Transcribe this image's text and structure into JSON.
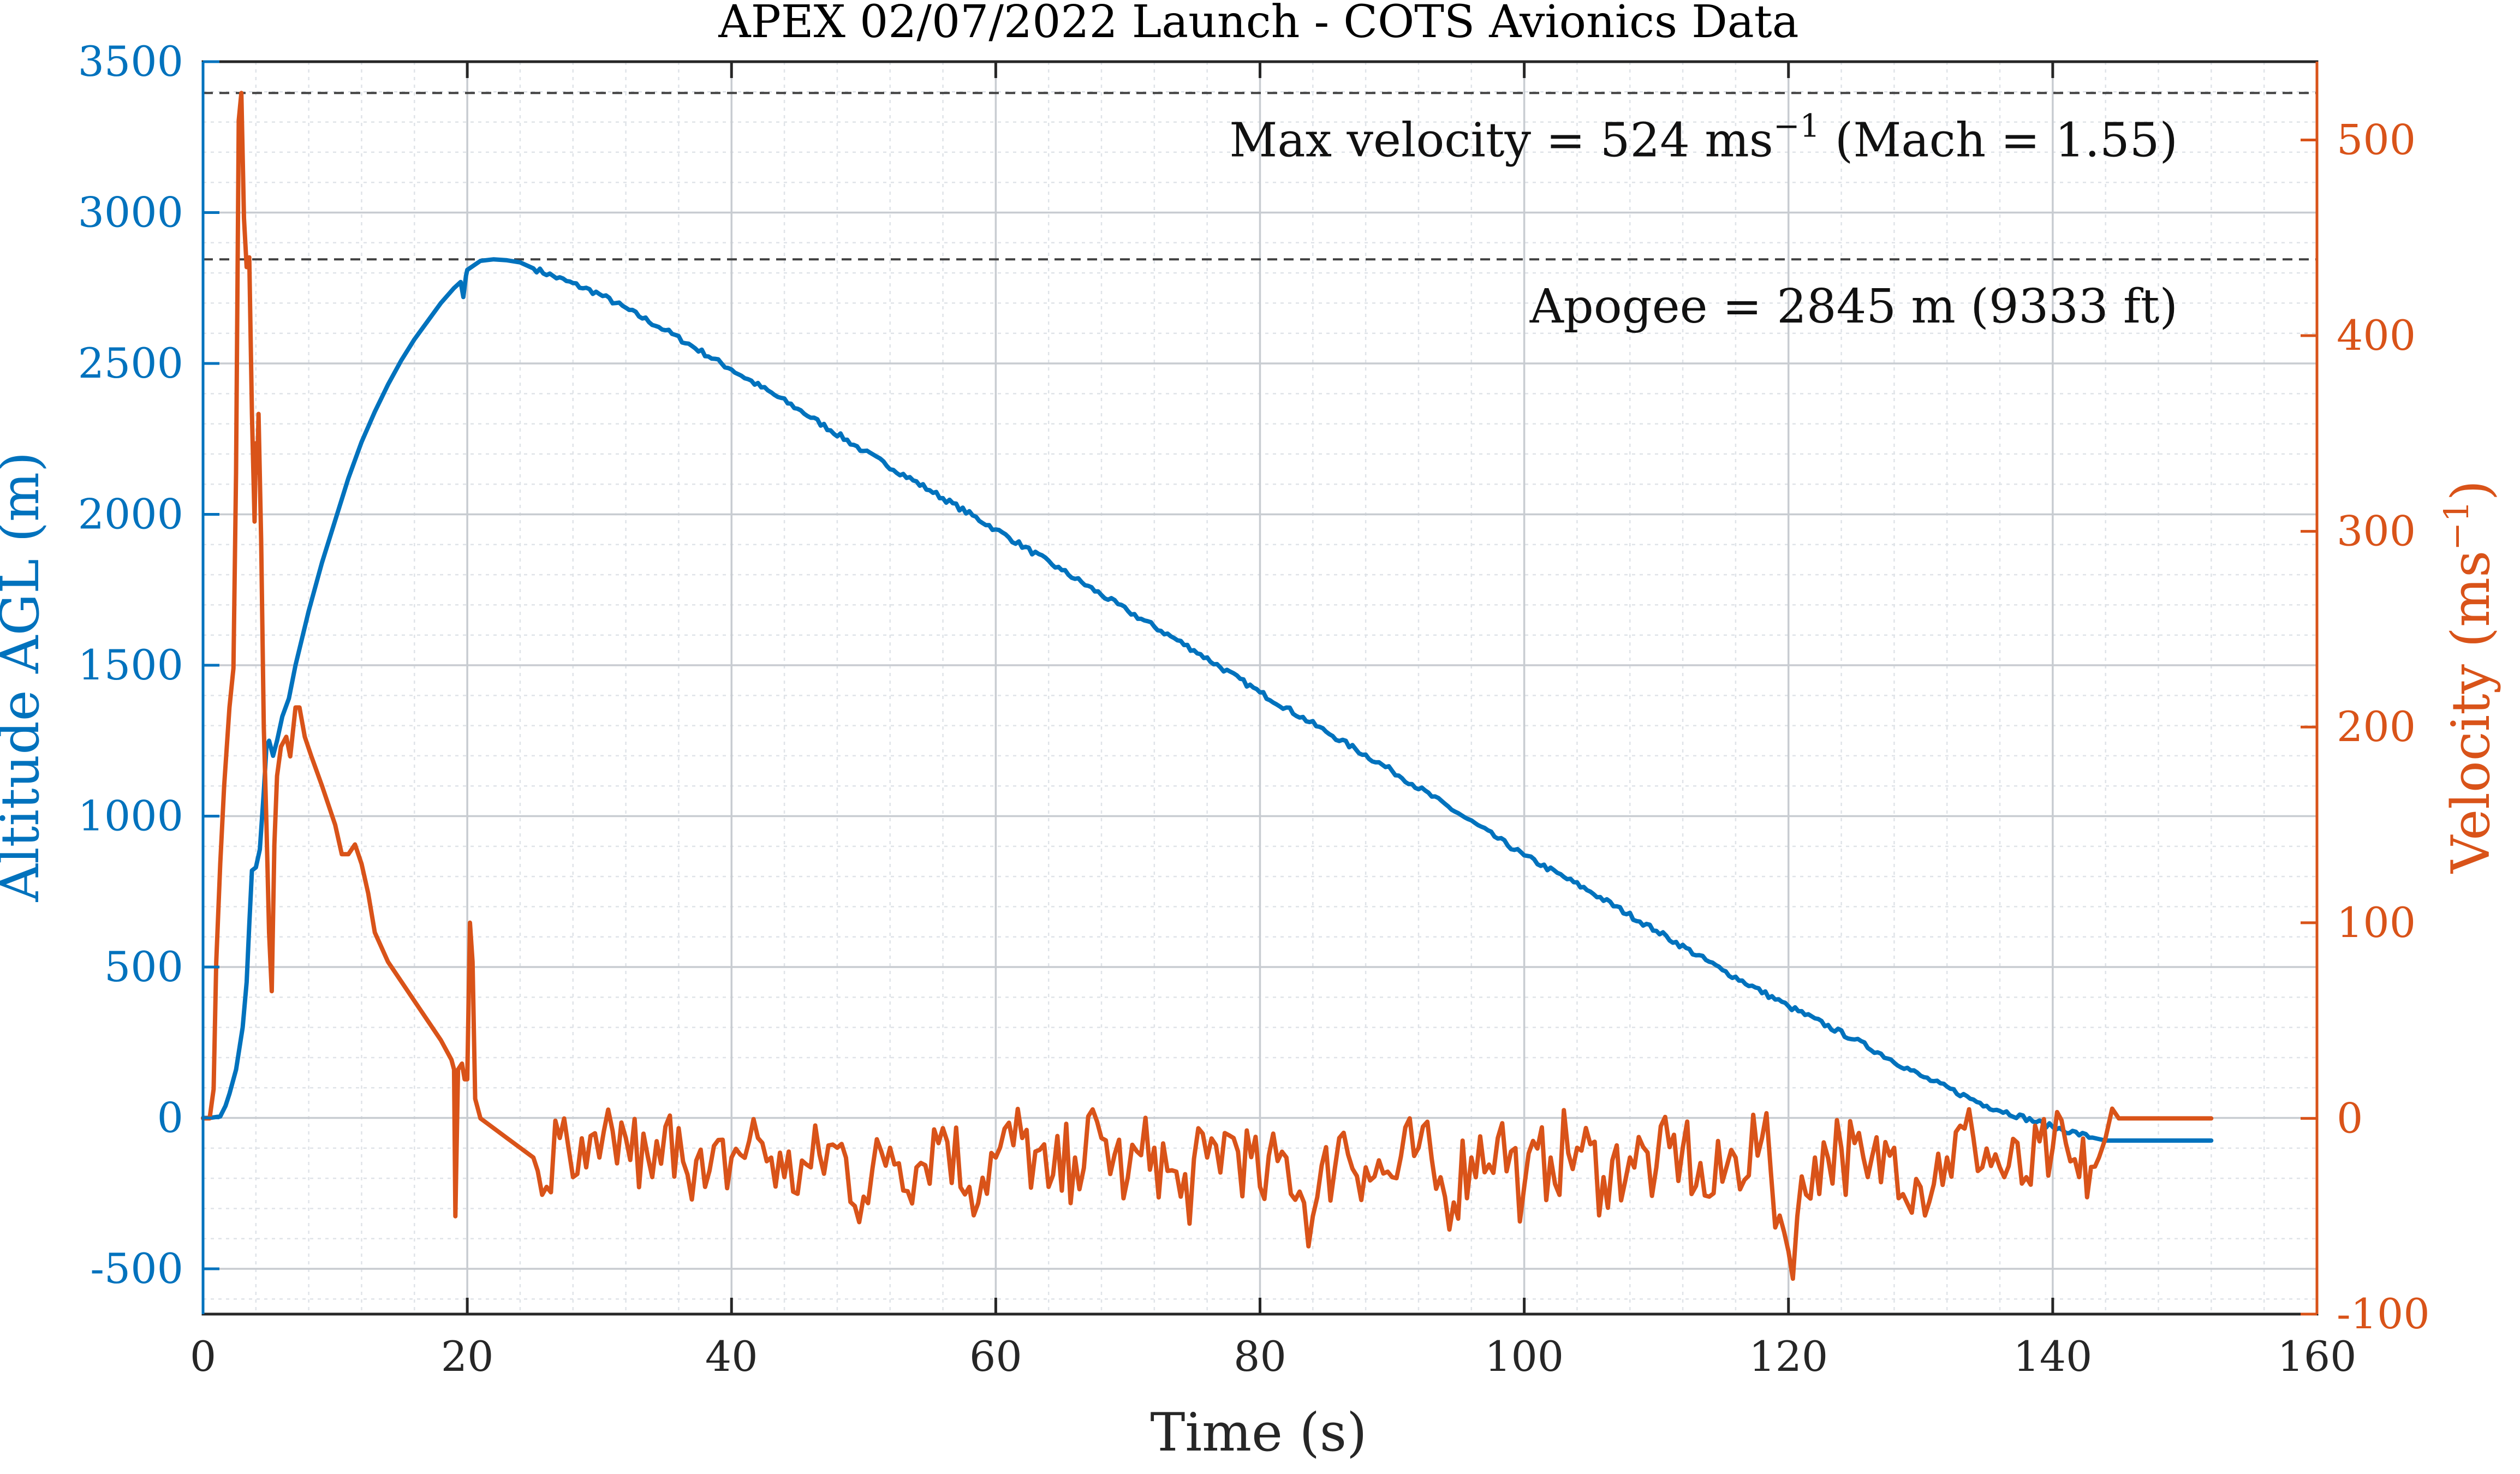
{
  "chart_data": {
    "type": "line",
    "title": "APEX 02/07/2022 Launch - COTS Avionics Data",
    "xlabel": "Time (s)",
    "ylabel_left": "Altitude AGL (m)",
    "ylabel_right": "Velocity (ms",
    "ylabel_right_sup": "−1",
    "ylabel_right_close": ")",
    "xlim": [
      0,
      160
    ],
    "ylim_left": [
      -650,
      3500
    ],
    "ylim_right": [
      -100,
      540
    ],
    "x_ticks": [
      0,
      20,
      40,
      60,
      80,
      100,
      120,
      140,
      160
    ],
    "y_left_ticks": [
      -500,
      0,
      500,
      1000,
      1500,
      2000,
      2500,
      3000,
      3500
    ],
    "y_right_ticks": [
      -100,
      0,
      100,
      200,
      300,
      400,
      500
    ],
    "grid": true,
    "minor_grid": true,
    "colors": {
      "altitude": "#0072BD",
      "velocity": "#D95319",
      "axis": "#262626",
      "reference": "#404040"
    },
    "annotations": [
      {
        "text": "Max velocity = 524 ms",
        "sup": "−1",
        "tail": " (Mach = 1.55)",
        "axis": "right",
        "value": 524
      },
      {
        "text": "Apogee = 2845 m (9333 ft)",
        "sup": "",
        "tail": "",
        "axis": "left",
        "value": 2845
      }
    ],
    "series": [
      {
        "axis": "left",
        "points": [
          [
            0,
            0
          ],
          [
            0.5,
            0
          ],
          [
            1.3,
            5
          ],
          [
            1.7,
            40
          ],
          [
            2,
            80
          ],
          [
            2.5,
            160
          ],
          [
            3,
            300
          ],
          [
            3.3,
            450
          ],
          [
            3.5,
            640
          ],
          [
            3.7,
            820
          ],
          [
            4,
            830
          ],
          [
            4.3,
            890
          ],
          [
            4.6,
            1080
          ],
          [
            4.8,
            1230
          ],
          [
            5,
            1250
          ],
          [
            5.3,
            1200
          ],
          [
            5.6,
            1250
          ],
          [
            6,
            1330
          ],
          [
            6.5,
            1390
          ],
          [
            7,
            1500
          ],
          [
            8,
            1680
          ],
          [
            9,
            1840
          ],
          [
            10,
            1980
          ],
          [
            11,
            2120
          ],
          [
            12,
            2240
          ],
          [
            13,
            2340
          ],
          [
            14,
            2430
          ],
          [
            15,
            2510
          ],
          [
            16,
            2580
          ],
          [
            17,
            2640
          ],
          [
            18,
            2700
          ],
          [
            19,
            2750
          ],
          [
            19.5,
            2770
          ],
          [
            19.7,
            2720
          ],
          [
            19.9,
            2790
          ],
          [
            20,
            2810
          ],
          [
            21,
            2840
          ],
          [
            22,
            2845
          ],
          [
            23,
            2842
          ],
          [
            24,
            2835
          ],
          [
            25,
            2815
          ],
          [
            30,
            2730
          ],
          [
            35,
            2610
          ],
          [
            40,
            2480
          ],
          [
            45,
            2350
          ],
          [
            50,
            2210
          ],
          [
            55,
            2080
          ],
          [
            60,
            1950
          ],
          [
            65,
            1815
          ],
          [
            70,
            1680
          ],
          [
            75,
            1550
          ],
          [
            80,
            1410
          ],
          [
            85,
            1280
          ],
          [
            90,
            1150
          ],
          [
            95,
            1010
          ],
          [
            100,
            870
          ],
          [
            105,
            750
          ],
          [
            110,
            620
          ],
          [
            115,
            490
          ],
          [
            120,
            370
          ],
          [
            125,
            260
          ],
          [
            130,
            140
          ],
          [
            135,
            40
          ],
          [
            140,
            -30
          ],
          [
            143,
            -65
          ],
          [
            144,
            -75
          ],
          [
            147,
            -75
          ],
          [
            152,
            -75
          ]
        ]
      },
      {
        "axis": "right",
        "points": [
          [
            0,
            0
          ],
          [
            0.5,
            0
          ],
          [
            0.8,
            15
          ],
          [
            1,
            80
          ],
          [
            1.3,
            130
          ],
          [
            1.6,
            170
          ],
          [
            2,
            210
          ],
          [
            2.3,
            230
          ],
          [
            2.5,
            330
          ],
          [
            2.7,
            510
          ],
          [
            2.9,
            524
          ],
          [
            3.1,
            460
          ],
          [
            3.3,
            435
          ],
          [
            3.5,
            440
          ],
          [
            3.7,
            360
          ],
          [
            3.9,
            305
          ],
          [
            4,
            345
          ],
          [
            4.1,
            330
          ],
          [
            4.2,
            360
          ],
          [
            4.4,
            295
          ],
          [
            4.6,
            200
          ],
          [
            4.8,
            150
          ],
          [
            5,
            95
          ],
          [
            5.2,
            65
          ],
          [
            5.4,
            140
          ],
          [
            5.6,
            175
          ],
          [
            5.9,
            190
          ],
          [
            6.3,
            195
          ],
          [
            6.6,
            185
          ],
          [
            7,
            210
          ],
          [
            7.3,
            210
          ],
          [
            7.7,
            195
          ],
          [
            8.2,
            185
          ],
          [
            9,
            170
          ],
          [
            10,
            150
          ],
          [
            10.5,
            135
          ],
          [
            11,
            135
          ],
          [
            11.5,
            140
          ],
          [
            12,
            130
          ],
          [
            12.5,
            115
          ],
          [
            13,
            95
          ],
          [
            14,
            80
          ],
          [
            15,
            70
          ],
          [
            16,
            60
          ],
          [
            17,
            50
          ],
          [
            18,
            40
          ],
          [
            18.8,
            30
          ],
          [
            19,
            25
          ],
          [
            19.1,
            -50
          ],
          [
            19.3,
            25
          ],
          [
            19.6,
            28
          ],
          [
            19.8,
            20
          ],
          [
            20,
            20
          ],
          [
            20.2,
            100
          ],
          [
            20.4,
            80
          ],
          [
            20.6,
            10
          ],
          [
            21,
            0
          ],
          [
            22,
            -5
          ],
          [
            23,
            -10
          ],
          [
            24,
            -15
          ],
          [
            25,
            -20
          ],
          [
            26,
            -35
          ],
          [
            27,
            -10
          ],
          [
            28,
            -30
          ],
          [
            29,
            -25
          ],
          [
            30,
            -20
          ],
          [
            32,
            -10
          ],
          [
            34,
            -30
          ],
          [
            36,
            -5
          ],
          [
            38,
            -35
          ],
          [
            40,
            -20
          ],
          [
            42,
            -10
          ],
          [
            44,
            -30
          ],
          [
            46,
            -25
          ],
          [
            48,
            -15
          ],
          [
            50,
            -40
          ],
          [
            52,
            -15
          ],
          [
            54,
            -25
          ],
          [
            56,
            -5
          ],
          [
            58,
            -35
          ],
          [
            60,
            -20
          ],
          [
            62,
            -10
          ],
          [
            64,
            -35
          ],
          [
            66,
            -20
          ],
          [
            68,
            -10
          ],
          [
            70,
            -30
          ],
          [
            72,
            -15
          ],
          [
            74,
            -40
          ],
          [
            76,
            -20
          ],
          [
            78,
            -10
          ],
          [
            80,
            -35
          ],
          [
            82,
            -20
          ],
          [
            84,
            -50
          ],
          [
            86,
            -10
          ],
          [
            88,
            -25
          ],
          [
            90,
            -30
          ],
          [
            92,
            -15
          ],
          [
            94,
            -40
          ],
          [
            96,
            -20
          ],
          [
            98,
            -10
          ],
          [
            100,
            -35
          ],
          [
            102,
            -20
          ],
          [
            104,
            -15
          ],
          [
            106,
            -30
          ],
          [
            108,
            -20
          ],
          [
            110,
            -25
          ],
          [
            112,
            -15
          ],
          [
            114,
            -40
          ],
          [
            116,
            -20
          ],
          [
            118,
            -10
          ],
          [
            120,
            -68
          ],
          [
            122,
            -20
          ],
          [
            124,
            -15
          ],
          [
            126,
            -30
          ],
          [
            128,
            -15
          ],
          [
            130,
            -35
          ],
          [
            132,
            -20
          ],
          [
            134,
            -10
          ],
          [
            136,
            -25
          ],
          [
            138,
            -30
          ],
          [
            140,
            -15
          ],
          [
            142,
            -30
          ],
          [
            143.5,
            -20
          ],
          [
            144,
            -10
          ],
          [
            144.5,
            5
          ],
          [
            145,
            0
          ],
          [
            152,
            0
          ]
        ]
      }
    ]
  }
}
